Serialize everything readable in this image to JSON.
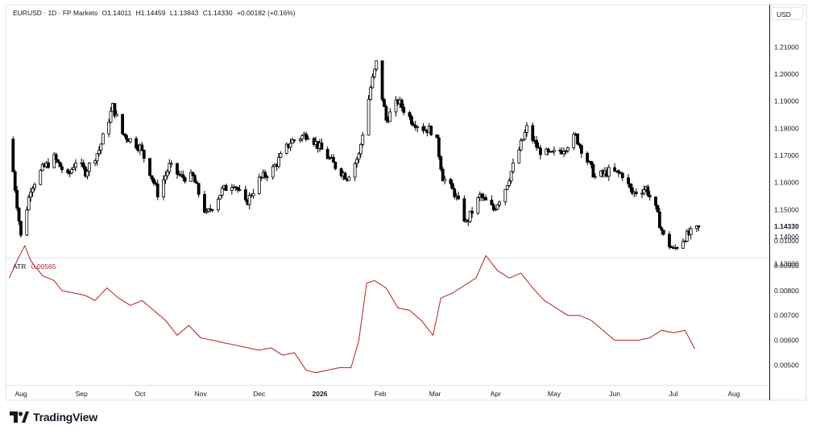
{
  "header": {
    "symbol": "EURUSD · 1D · FP Markets",
    "open": "O1.14011",
    "high": "H1.14459",
    "low": "L1.13843",
    "close": "C1.14330",
    "change": "+0.00182 (+0.16%)"
  },
  "currency_button": "USD",
  "atr_header": {
    "label": "ATR",
    "value": "0.00565"
  },
  "brand": "TradingView",
  "colors": {
    "up": "#ffffff",
    "down": "#000000",
    "atr": "#b22222",
    "grid": "#e0e3eb"
  },
  "chart_data": [
    {
      "type": "candlestick",
      "title": "EURUSD · 1D · FP Markets",
      "x_tick_labels": [
        "Aug",
        "Sep",
        "Oct",
        "Nov",
        "Dec",
        "2026",
        "Feb",
        "Mar",
        "Apr",
        "May",
        "Jun",
        "Jul",
        "Aug"
      ],
      "y_tick_labels": [
        "1.21000",
        "1.20000",
        "1.19000",
        "1.18000",
        "1.17000",
        "1.16000",
        "1.15000",
        "1.14000",
        "1.13000"
      ],
      "ylim": [
        1.1265,
        1.2145
      ],
      "current_price_label": "1.14330",
      "close_path": [
        {
          "x": "2025-07-26",
          "y": 1.176
        },
        {
          "x": "2025-08-01",
          "y": 1.14
        },
        {
          "x": "2025-08-06",
          "y": 1.158
        },
        {
          "x": "2025-08-12",
          "y": 1.165
        },
        {
          "x": "2025-08-18",
          "y": 1.169
        },
        {
          "x": "2025-08-25",
          "y": 1.162
        },
        {
          "x": "2025-08-29",
          "y": 1.168
        },
        {
          "x": "2025-09-03",
          "y": 1.164
        },
        {
          "x": "2025-09-10",
          "y": 1.172
        },
        {
          "x": "2025-09-17",
          "y": 1.188
        },
        {
          "x": "2025-09-22",
          "y": 1.178
        },
        {
          "x": "2025-10-01",
          "y": 1.173
        },
        {
          "x": "2025-10-06",
          "y": 1.164
        },
        {
          "x": "2025-10-10",
          "y": 1.156
        },
        {
          "x": "2025-10-16",
          "y": 1.166
        },
        {
          "x": "2025-10-22",
          "y": 1.162
        },
        {
          "x": "2025-10-28",
          "y": 1.162
        },
        {
          "x": "2025-11-04",
          "y": 1.148
        },
        {
          "x": "2025-11-12",
          "y": 1.157
        },
        {
          "x": "2025-11-18",
          "y": 1.16
        },
        {
          "x": "2025-11-24",
          "y": 1.152
        },
        {
          "x": "2025-12-01",
          "y": 1.161
        },
        {
          "x": "2025-12-08",
          "y": 1.165
        },
        {
          "x": "2025-12-17",
          "y": 1.175
        },
        {
          "x": "2025-12-26",
          "y": 1.178
        },
        {
          "x": "2026-01-02",
          "y": 1.172
        },
        {
          "x": "2026-01-09",
          "y": 1.166
        },
        {
          "x": "2026-01-15",
          "y": 1.162
        },
        {
          "x": "2026-01-21",
          "y": 1.17
        },
        {
          "x": "2026-01-27",
          "y": 1.195
        },
        {
          "x": "2026-01-30",
          "y": 1.204
        },
        {
          "x": "2026-02-04",
          "y": 1.183
        },
        {
          "x": "2026-02-10",
          "y": 1.19
        },
        {
          "x": "2026-02-17",
          "y": 1.183
        },
        {
          "x": "2026-02-23",
          "y": 1.18
        },
        {
          "x": "2026-03-01",
          "y": 1.179
        },
        {
          "x": "2026-03-05",
          "y": 1.162
        },
        {
          "x": "2026-03-11",
          "y": 1.156
        },
        {
          "x": "2026-03-17",
          "y": 1.145
        },
        {
          "x": "2026-03-24",
          "y": 1.155
        },
        {
          "x": "2026-03-31",
          "y": 1.15
        },
        {
          "x": "2026-04-06",
          "y": 1.158
        },
        {
          "x": "2026-04-13",
          "y": 1.172
        },
        {
          "x": "2026-04-17",
          "y": 1.18
        },
        {
          "x": "2026-04-23",
          "y": 1.172
        },
        {
          "x": "2026-04-29",
          "y": 1.17
        },
        {
          "x": "2026-05-05",
          "y": 1.172
        },
        {
          "x": "2026-05-12",
          "y": 1.177
        },
        {
          "x": "2026-05-18",
          "y": 1.168
        },
        {
          "x": "2026-05-22",
          "y": 1.162
        },
        {
          "x": "2026-05-29",
          "y": 1.164
        },
        {
          "x": "2026-06-05",
          "y": 1.163
        },
        {
          "x": "2026-06-10",
          "y": 1.156
        },
        {
          "x": "2026-06-17",
          "y": 1.158
        },
        {
          "x": "2026-06-22",
          "y": 1.15
        },
        {
          "x": "2026-06-26",
          "y": 1.14
        },
        {
          "x": "2026-07-01",
          "y": 1.135
        },
        {
          "x": "2026-07-07",
          "y": 1.14
        },
        {
          "x": "2026-07-14",
          "y": 1.143
        }
      ]
    },
    {
      "type": "line",
      "title": "ATR 0.00565",
      "y_tick_labels": [
        "0.01000",
        "0.00900",
        "0.00800",
        "0.00700",
        "0.00600",
        "0.00500"
      ],
      "ylim": [
        0.0044,
        0.0103
      ],
      "x": [
        "2025-07-26",
        "2025-07-30",
        "2025-08-03",
        "2025-08-06",
        "2025-08-12",
        "2025-08-18",
        "2025-08-22",
        "2025-08-28",
        "2025-09-03",
        "2025-09-08",
        "2025-09-14",
        "2025-09-20",
        "2025-09-26",
        "2025-10-02",
        "2025-10-08",
        "2025-10-14",
        "2025-10-20",
        "2025-10-26",
        "2025-11-01",
        "2025-11-07",
        "2025-11-13",
        "2025-11-19",
        "2025-11-25",
        "2025-12-01",
        "2025-12-07",
        "2025-12-13",
        "2025-12-19",
        "2025-12-25",
        "2025-12-30",
        "2026-01-05",
        "2026-01-11",
        "2026-01-17",
        "2026-01-21",
        "2026-01-25",
        "2026-01-29",
        "2026-02-04",
        "2026-02-10",
        "2026-02-16",
        "2026-02-22",
        "2026-02-28",
        "2026-03-04",
        "2026-03-10",
        "2026-03-16",
        "2026-03-22",
        "2026-03-27",
        "2026-04-02",
        "2026-04-08",
        "2026-04-14",
        "2026-04-20",
        "2026-04-26",
        "2026-05-02",
        "2026-05-08",
        "2026-05-14",
        "2026-05-20",
        "2026-05-26",
        "2026-06-01",
        "2026-06-07",
        "2026-06-13",
        "2026-06-19",
        "2026-06-25",
        "2026-07-01",
        "2026-07-07",
        "2026-07-12"
      ],
      "series": [
        {
          "values": [
            0.0085,
            0.0092,
            0.0098,
            0.0092,
            0.0086,
            0.0084,
            0.008,
            0.0079,
            0.0078,
            0.0076,
            0.0081,
            0.0077,
            0.0074,
            0.0076,
            0.0072,
            0.0068,
            0.0062,
            0.0066,
            0.0061,
            0.006,
            0.0059,
            0.0058,
            0.0057,
            0.0056,
            0.0057,
            0.0054,
            0.0055,
            0.0048,
            0.0047,
            0.0048,
            0.0049,
            0.0049,
            0.006,
            0.0083,
            0.0084,
            0.0081,
            0.0073,
            0.0072,
            0.0068,
            0.0062,
            0.0077,
            0.0079,
            0.0082,
            0.0085,
            0.0094,
            0.0088,
            0.0085,
            0.0087,
            0.0081,
            0.0076,
            0.0073,
            0.007,
            0.007,
            0.0068,
            0.0064,
            0.006,
            0.006,
            0.006,
            0.0061,
            0.0064,
            0.0063,
            0.0064,
            0.00565
          ]
        }
      ]
    }
  ]
}
